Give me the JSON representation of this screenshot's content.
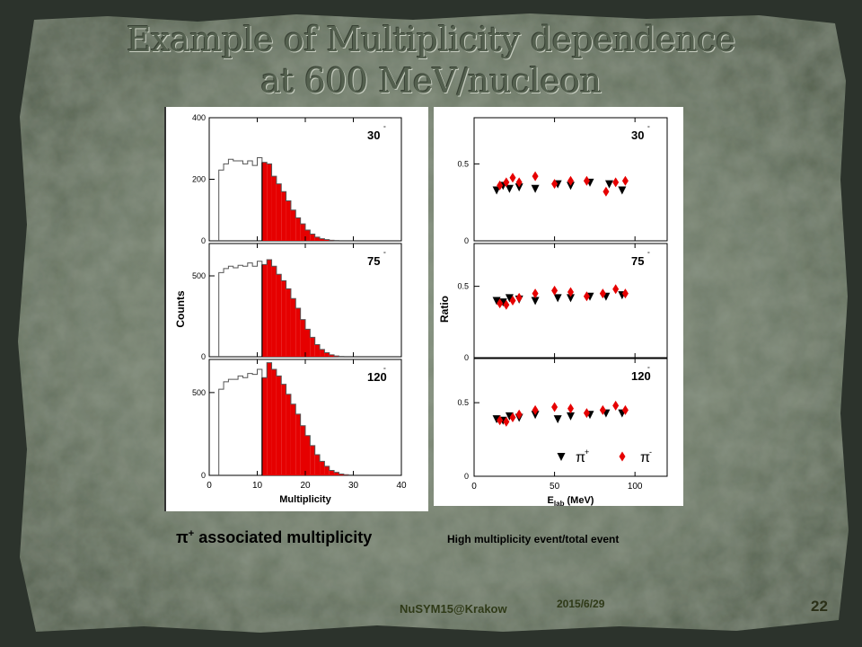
{
  "slide": {
    "title_line1": "Example of Multiplicity dependence",
    "title_line2": "at 600 MeV/nucleon",
    "caption_left_symbol": "π",
    "caption_left_sup": "+",
    "caption_left_text": " associated multiplicity",
    "caption_right": "High multiplicity event/total event",
    "conference": "NuSYM15@Krakow",
    "date": "2015/6/29",
    "page_number": "22"
  },
  "colors": {
    "highlight": "#e60000",
    "background": "#6b7864",
    "frame": "#2c332c"
  },
  "chart_data": [
    {
      "type": "bar",
      "ylabel": "Counts",
      "xlabel": "Multiplicity",
      "xlim": [
        0,
        40
      ],
      "x_ticks": [
        "0",
        "10",
        "20",
        "30",
        "40"
      ],
      "highlight_from": 11,
      "panels": [
        {
          "label": "30",
          "ylim": [
            0,
            400
          ],
          "y_ticks": [
            "0",
            "200",
            "400"
          ],
          "bins_x": [
            2,
            3,
            4,
            5,
            6,
            7,
            8,
            9,
            10,
            11,
            12,
            13,
            14,
            15,
            16,
            17,
            18,
            19,
            20,
            21,
            22,
            23,
            24,
            25,
            26
          ],
          "values": [
            230,
            250,
            265,
            260,
            260,
            250,
            260,
            245,
            270,
            255,
            250,
            210,
            185,
            160,
            130,
            100,
            75,
            55,
            35,
            22,
            12,
            7,
            4,
            2,
            1
          ]
        },
        {
          "label": "75",
          "ylim": [
            0,
            700
          ],
          "y_ticks": [
            "0",
            "500"
          ],
          "bins_x": [
            2,
            3,
            4,
            5,
            6,
            7,
            8,
            9,
            10,
            11,
            12,
            13,
            14,
            15,
            16,
            17,
            18,
            19,
            20,
            21,
            22,
            23,
            24,
            25,
            26,
            27
          ],
          "values": [
            520,
            545,
            560,
            550,
            565,
            560,
            580,
            560,
            590,
            570,
            600,
            560,
            510,
            470,
            420,
            360,
            300,
            230,
            170,
            120,
            75,
            45,
            25,
            12,
            5,
            2
          ]
        },
        {
          "label": "120",
          "ylim": [
            0,
            700
          ],
          "y_ticks": [
            "0",
            "500"
          ],
          "bins_x": [
            2,
            3,
            4,
            5,
            6,
            7,
            8,
            9,
            10,
            11,
            12,
            13,
            14,
            15,
            16,
            17,
            18,
            19,
            20,
            21,
            22,
            23,
            24,
            25,
            26,
            27,
            28,
            29
          ],
          "values": [
            520,
            565,
            580,
            580,
            600,
            590,
            615,
            610,
            640,
            590,
            680,
            640,
            600,
            550,
            490,
            430,
            370,
            300,
            240,
            180,
            125,
            85,
            55,
            30,
            18,
            8,
            4,
            2
          ]
        }
      ]
    },
    {
      "type": "scatter",
      "ylabel": "Ratio",
      "xlabel": "E",
      "xlabel_sub": "lab",
      "xlabel_unit": " (MeV)",
      "xlim": [
        0,
        120
      ],
      "x_ticks": [
        "0",
        "50",
        "100"
      ],
      "ylim": [
        0,
        0.8
      ],
      "y_ticks": [
        "0",
        "0.5"
      ],
      "series": [
        {
          "name": "π+",
          "marker": "triangle-down",
          "color": "#000000"
        },
        {
          "name": "π-",
          "marker": "diamond",
          "color": "#e60000"
        }
      ],
      "panels": [
        {
          "label": "30",
          "pi_plus": {
            "x": [
              14,
              18,
              22,
              28,
              38,
              52,
              60,
              72,
              84,
              92
            ],
            "y": [
              0.33,
              0.36,
              0.34,
              0.35,
              0.34,
              0.37,
              0.36,
              0.38,
              0.37,
              0.33
            ]
          },
          "pi_minus": {
            "x": [
              16,
              20,
              24,
              28,
              38,
              50,
              60,
              70,
              82,
              88,
              94
            ],
            "y": [
              0.36,
              0.38,
              0.41,
              0.38,
              0.42,
              0.37,
              0.39,
              0.39,
              0.32,
              0.38,
              0.39
            ]
          }
        },
        {
          "label": "75",
          "pi_plus": {
            "x": [
              14,
              18,
              22,
              28,
              38,
              52,
              60,
              72,
              82,
              92
            ],
            "y": [
              0.4,
              0.39,
              0.42,
              0.41,
              0.4,
              0.42,
              0.42,
              0.43,
              0.43,
              0.44
            ]
          },
          "pi_minus": {
            "x": [
              16,
              20,
              24,
              28,
              38,
              50,
              60,
              70,
              80,
              88,
              94
            ],
            "y": [
              0.38,
              0.37,
              0.4,
              0.42,
              0.45,
              0.47,
              0.46,
              0.43,
              0.45,
              0.48,
              0.45
            ]
          }
        },
        {
          "label": "120",
          "pi_plus": {
            "x": [
              14,
              18,
              22,
              28,
              38,
              52,
              60,
              72,
              82,
              92
            ],
            "y": [
              0.39,
              0.38,
              0.41,
              0.4,
              0.42,
              0.39,
              0.41,
              0.42,
              0.43,
              0.43
            ]
          },
          "pi_minus": {
            "x": [
              16,
              20,
              24,
              28,
              38,
              50,
              60,
              70,
              80,
              88,
              94
            ],
            "y": [
              0.38,
              0.37,
              0.4,
              0.42,
              0.45,
              0.47,
              0.46,
              0.43,
              0.45,
              0.48,
              0.45
            ]
          }
        }
      ]
    }
  ]
}
